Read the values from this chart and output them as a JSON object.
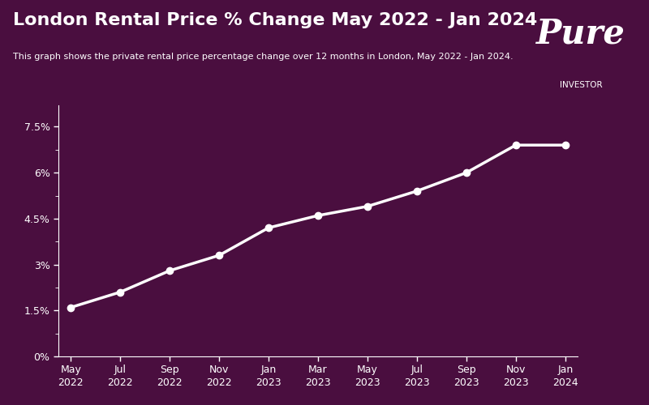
{
  "title": "London Rental Price % Change May 2022 - Jan 2024",
  "subtitle": "This graph shows the private rental price percentage change over 12 months in London, May 2022 - Jan 2024.",
  "background_color": "#4a0e3f",
  "line_color": "#ffffff",
  "x_labels": [
    "May\n2022",
    "Jul\n2022",
    "Sep\n2022",
    "Nov\n2022",
    "Jan\n2023",
    "Mar\n2023",
    "May\n2023",
    "Jul\n2023",
    "Sep\n2023",
    "Nov\n2023",
    "Jan\n2024"
  ],
  "x_values": [
    0,
    2,
    4,
    6,
    8,
    10,
    12,
    14,
    16,
    18,
    20
  ],
  "y_values": [
    1.6,
    2.1,
    2.8,
    3.3,
    4.2,
    4.6,
    4.9,
    5.4,
    6.0,
    6.9,
    6.9
  ],
  "yticks": [
    0,
    1.5,
    3.0,
    4.5,
    6.0,
    7.5
  ],
  "ytick_labels": [
    "0%",
    "1.5%",
    "3%",
    "4.5%",
    "6%",
    "7.5%"
  ],
  "ylim": [
    0,
    8.2
  ],
  "xlim": [
    -0.5,
    20.5
  ],
  "logo_text_pure": "Pure",
  "logo_text_investor": "INVESTOR",
  "text_color": "#ffffff",
  "tick_color": "#ffffff",
  "axis_color": "#ffffff"
}
